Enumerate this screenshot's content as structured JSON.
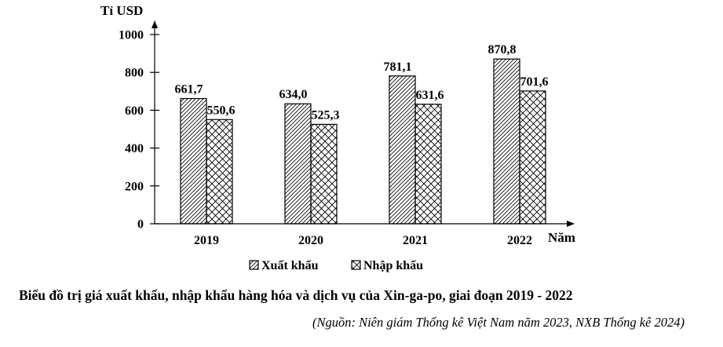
{
  "chart_data": {
    "type": "bar",
    "title": "Biểu đồ trị giá xuất khẩu, nhập khẩu hàng hóa và dịch vụ của Xin-ga-po, giai đoạn 2019 - 2022",
    "source": "(Nguồn: Niên giám Thống kê Việt Nam năm 2023, NXB Thống kê 2024)",
    "ylabel": "Tỉ USD",
    "xlabel": "Năm",
    "categories": [
      "2019",
      "2020",
      "2021",
      "2022"
    ],
    "ylim": [
      0,
      1000
    ],
    "yticks": [
      0,
      200,
      400,
      600,
      800,
      1000
    ],
    "series": [
      {
        "name": "Xuất khẩu",
        "values": [
          661.7,
          634.0,
          781.1,
          870.8
        ],
        "labels": [
          "661,7",
          "634,0",
          "781,1",
          "870,8"
        ],
        "pattern": "diagonal-hatch"
      },
      {
        "name": "Nhập khẩu",
        "values": [
          550.6,
          525.3,
          631.6,
          701.6
        ],
        "labels": [
          "550,6",
          "525,3",
          "631,6",
          "701,6"
        ],
        "pattern": "cross-hatch"
      }
    ],
    "legend_position": "bottom-center",
    "grid": false
  }
}
